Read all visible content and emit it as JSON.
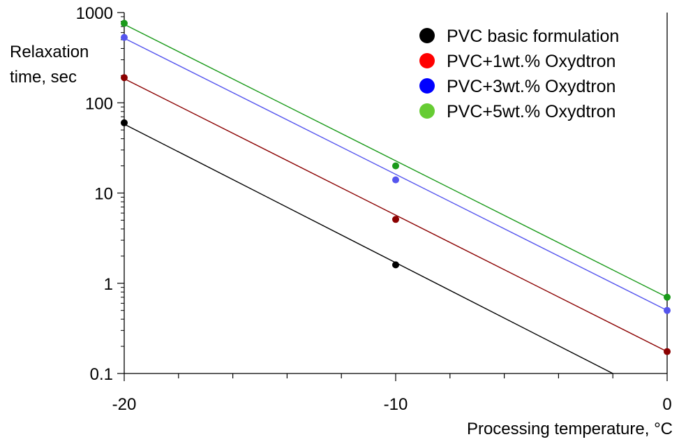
{
  "chart_data": {
    "type": "line",
    "title": "",
    "xlabel": "Processing temperature, °C",
    "ylabel": [
      "Relaxation",
      "time, sec"
    ],
    "xlim": [
      -20,
      0
    ],
    "ylim": [
      0.1,
      1000
    ],
    "yscale": "log",
    "xticks": [
      -20,
      -10,
      0
    ],
    "xtick_labels": [
      "-20",
      "-10",
      "0"
    ],
    "yticks": [
      0.1,
      1,
      10,
      100,
      1000
    ],
    "ytick_labels": [
      "0.1",
      "1",
      "10",
      "100",
      "1000"
    ],
    "grid": false,
    "legend_position": "top-right",
    "series": [
      {
        "name": "PVC basic formulation",
        "color": "#000000",
        "legend_color": "#000000",
        "points": [
          {
            "x": -20,
            "y": 60
          },
          {
            "x": -10,
            "y": 1.6
          }
        ],
        "fit_line": {
          "x0": -20,
          "y0": 58,
          "x1": -2,
          "y1": 0.1
        }
      },
      {
        "name": "PVC+1wt.% Oxydtron",
        "color": "#8b0000",
        "legend_color": "#ff0000",
        "points": [
          {
            "x": -20,
            "y": 190
          },
          {
            "x": -10,
            "y": 5.1
          },
          {
            "x": 0,
            "y": 0.175
          }
        ],
        "fit_line": {
          "x0": -20,
          "y0": 185,
          "x1": 0,
          "y1": 0.175
        }
      },
      {
        "name": "PVC+3wt.% Oxydtron",
        "color": "#5555ee",
        "legend_color": "#0000ff",
        "points": [
          {
            "x": -20,
            "y": 530
          },
          {
            "x": -10,
            "y": 14
          },
          {
            "x": 0,
            "y": 0.5
          }
        ],
        "fit_line": {
          "x0": -20,
          "y0": 520,
          "x1": 0,
          "y1": 0.5
        }
      },
      {
        "name": "PVC+5wt.% Oxydtron",
        "color": "#1a9a1a",
        "legend_color": "#66cc33",
        "points": [
          {
            "x": -20,
            "y": 760
          },
          {
            "x": -10,
            "y": 20
          },
          {
            "x": 0,
            "y": 0.7
          }
        ],
        "fit_line": {
          "x0": -20,
          "y0": 740,
          "x1": 0,
          "y1": 0.7
        }
      }
    ]
  }
}
